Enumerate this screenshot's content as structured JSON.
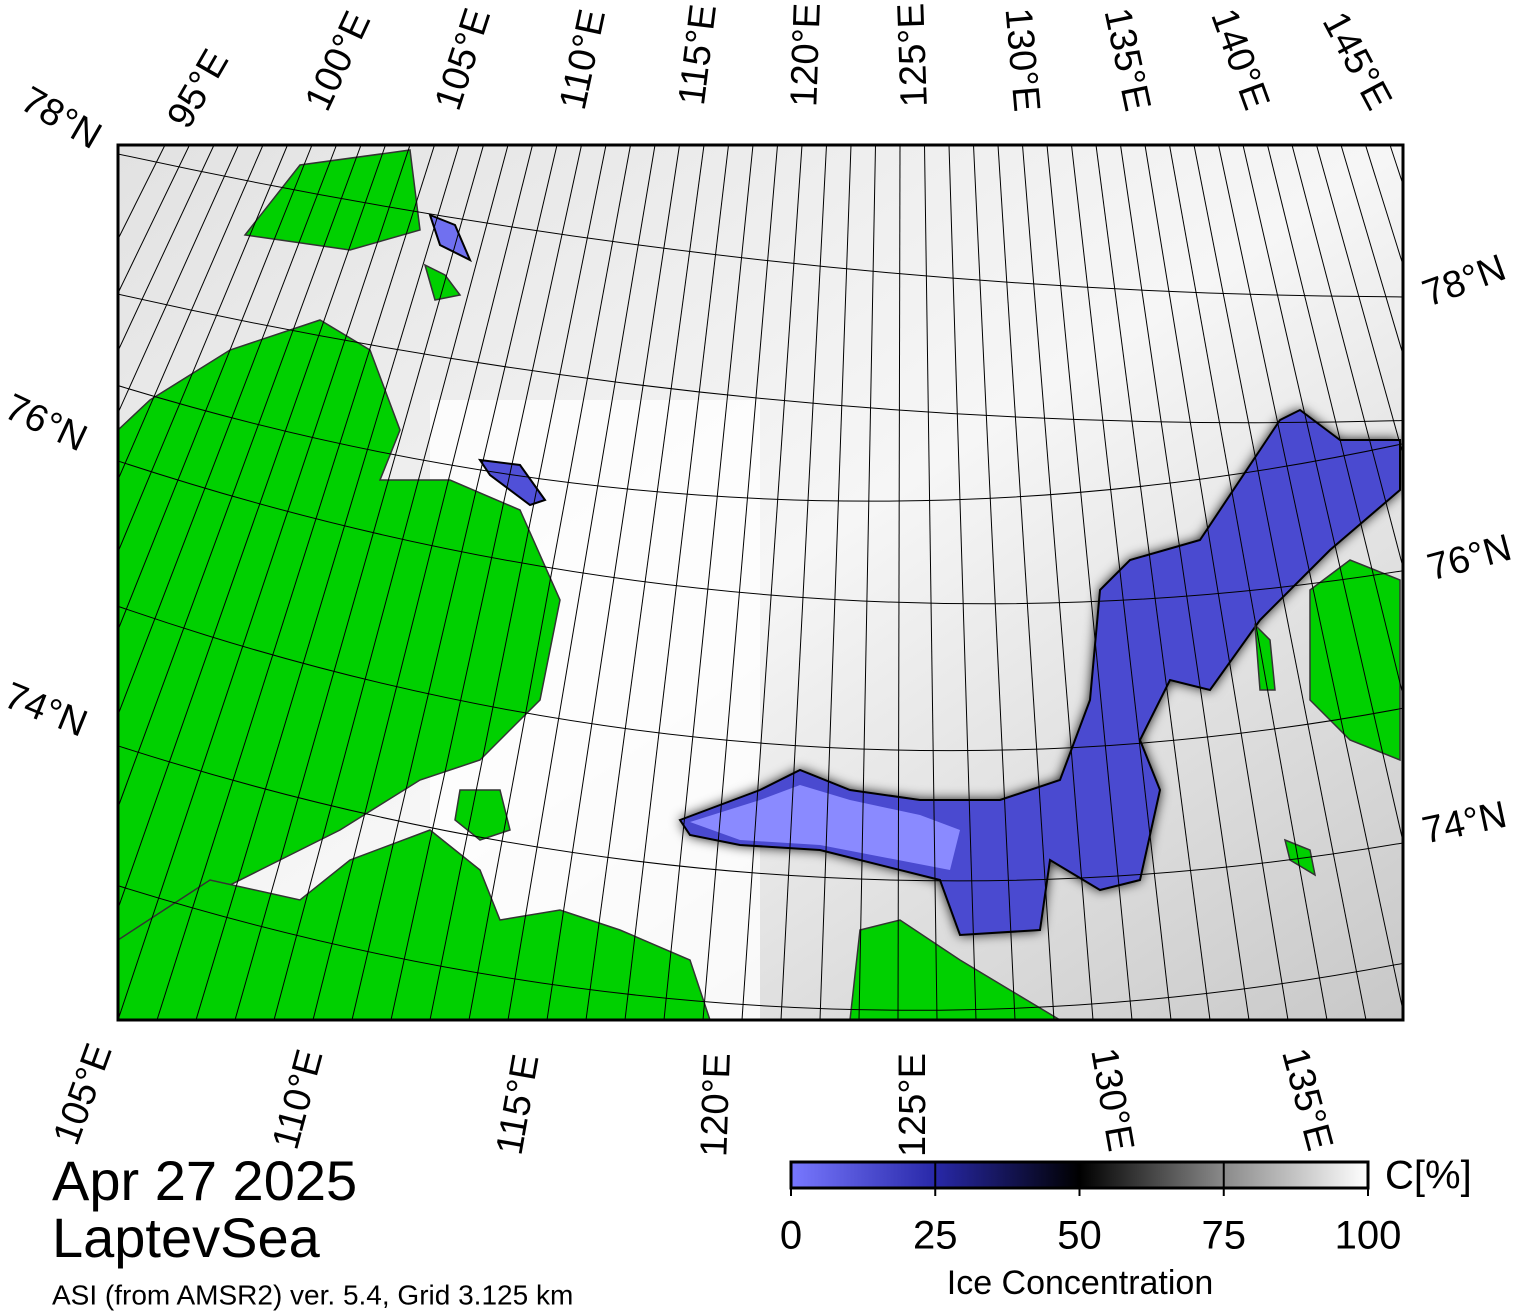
{
  "map": {
    "top_labels": [
      "95°E",
      "100°E",
      "105°E",
      "110°E",
      "115°E",
      "120°E",
      "125°E",
      "130°E",
      "135°E",
      "140°E",
      "145°E"
    ],
    "left_labels": [
      "78°N",
      "76°N",
      "74°N"
    ],
    "right_labels": [
      "78°N",
      "76°N",
      "74°N"
    ],
    "bottom_labels": [
      "105°E",
      "110°E",
      "115°E",
      "120°E",
      "125°E",
      "130°E",
      "135°E"
    ]
  },
  "caption": {
    "date": "Apr 27 2025",
    "region": "LaptevSea",
    "source": "ASI (from AMSR2) ver. 5.4,  Grid 3.125 km"
  },
  "colorbar": {
    "title": "Ice Concentration",
    "unit": "C[%]",
    "range": [
      0,
      100
    ],
    "ticks": [
      0,
      25,
      50,
      75,
      100
    ]
  }
}
